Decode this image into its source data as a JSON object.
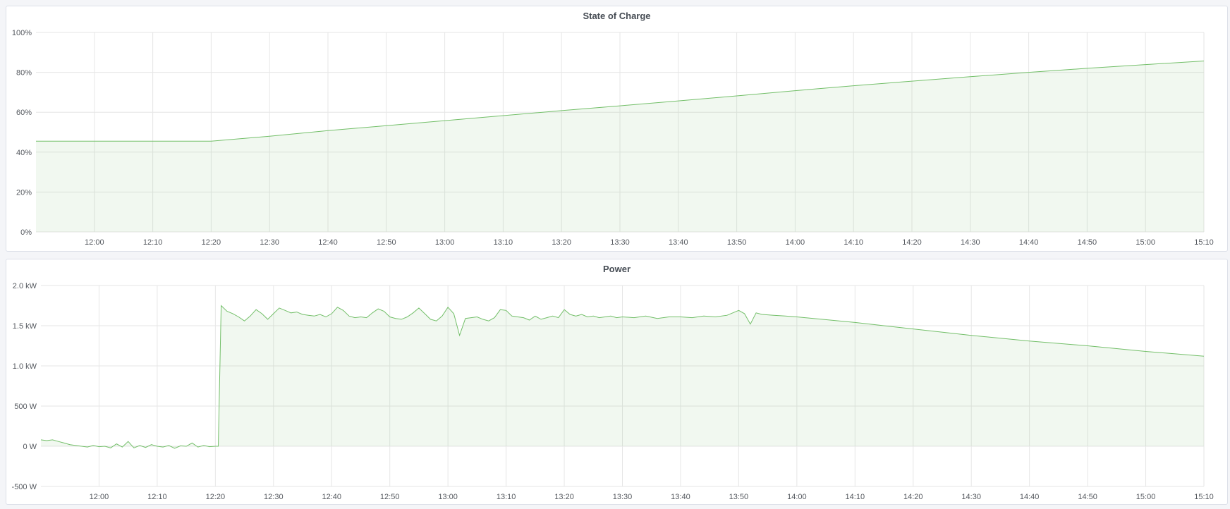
{
  "colors": {
    "line": "#73bf69",
    "fill": "rgba(115,191,105,0.10)",
    "grid": "#e6e6e6",
    "background": "#f4f5f8"
  },
  "chart_data": [
    {
      "type": "area",
      "title": "State of Charge",
      "xlim": [
        "11:50",
        "15:10"
      ],
      "ylim": [
        0,
        100
      ],
      "grid": true,
      "y_ticks": [
        {
          "v": 0,
          "label": "0%"
        },
        {
          "v": 20,
          "label": "20%"
        },
        {
          "v": 40,
          "label": "40%"
        },
        {
          "v": 60,
          "label": "60%"
        },
        {
          "v": 80,
          "label": "80%"
        },
        {
          "v": 100,
          "label": "100%"
        }
      ],
      "x_ticks": [
        "12:00",
        "12:10",
        "12:20",
        "12:30",
        "12:40",
        "12:50",
        "13:00",
        "13:10",
        "13:20",
        "13:30",
        "13:40",
        "13:50",
        "14:00",
        "14:10",
        "14:20",
        "14:30",
        "14:40",
        "14:50",
        "15:00",
        "15:10"
      ],
      "x": [
        "11:50",
        "12:20",
        "12:30",
        "12:40",
        "12:50",
        "13:00",
        "13:10",
        "13:20",
        "13:30",
        "13:40",
        "13:50",
        "14:00",
        "14:10",
        "14:20",
        "14:30",
        "14:40",
        "14:50",
        "15:00",
        "15:10"
      ],
      "values": [
        45.5,
        45.5,
        48,
        50.8,
        53.3,
        55.8,
        58.3,
        60.8,
        63.2,
        65.7,
        68.2,
        70.8,
        73.3,
        75.6,
        77.8,
        80,
        82,
        83.9,
        85.7
      ]
    },
    {
      "type": "area",
      "title": "Power",
      "xlim": [
        "11:50",
        "15:10"
      ],
      "ylim": [
        -500,
        2000
      ],
      "grid": true,
      "y_ticks": [
        {
          "v": -500,
          "label": "-500 W"
        },
        {
          "v": 0,
          "label": "0 W"
        },
        {
          "v": 500,
          "label": "500 W"
        },
        {
          "v": 1000,
          "label": "1.0 kW"
        },
        {
          "v": 1500,
          "label": "1.5 kW"
        },
        {
          "v": 2000,
          "label": "2.0 kW"
        }
      ],
      "x_ticks": [
        "12:00",
        "12:10",
        "12:20",
        "12:30",
        "12:40",
        "12:50",
        "13:00",
        "13:10",
        "13:20",
        "13:30",
        "13:40",
        "13:50",
        "14:00",
        "14:10",
        "14:20",
        "14:30",
        "14:40",
        "14:50",
        "15:00",
        "15:10"
      ],
      "x": [
        "11:50",
        "11:51",
        "11:52",
        "11:53",
        "11:54",
        "11:55",
        "11:56",
        "11:57",
        "11:58",
        "11:59",
        "12:00",
        "12:01",
        "12:02",
        "12:03",
        "12:04",
        "12:05",
        "12:06",
        "12:07",
        "12:08",
        "12:09",
        "12:10",
        "12:11",
        "12:12",
        "12:13",
        "12:14",
        "12:15",
        "12:16",
        "12:17",
        "12:18",
        "12:19",
        "12:20",
        "12:20:30",
        "12:21",
        "12:22",
        "12:23",
        "12:24",
        "12:25",
        "12:26",
        "12:27",
        "12:28",
        "12:29",
        "12:30",
        "12:31",
        "12:32",
        "12:33",
        "12:34",
        "12:35",
        "12:36",
        "12:37",
        "12:38",
        "12:39",
        "12:40",
        "12:41",
        "12:42",
        "12:43",
        "12:44",
        "12:45",
        "12:46",
        "12:47",
        "12:48",
        "12:49",
        "12:50",
        "12:51",
        "12:52",
        "12:53",
        "12:54",
        "12:55",
        "12:56",
        "12:57",
        "12:58",
        "12:59",
        "13:00",
        "13:01",
        "13:02",
        "13:03",
        "13:04",
        "13:05",
        "13:06",
        "13:07",
        "13:08",
        "13:09",
        "13:10",
        "13:11",
        "13:12",
        "13:13",
        "13:14",
        "13:15",
        "13:16",
        "13:17",
        "13:18",
        "13:19",
        "13:20",
        "13:21",
        "13:22",
        "13:23",
        "13:24",
        "13:25",
        "13:26",
        "13:27",
        "13:28",
        "13:29",
        "13:30",
        "13:32",
        "13:34",
        "13:36",
        "13:38",
        "13:40",
        "13:42",
        "13:44",
        "13:46",
        "13:48",
        "13:50",
        "13:51",
        "13:52",
        "13:53",
        "13:54",
        "13:56",
        "13:58",
        "14:00",
        "14:10",
        "14:20",
        "14:30",
        "14:40",
        "14:50",
        "15:00",
        "15:10"
      ],
      "values": [
        80,
        70,
        80,
        60,
        40,
        20,
        10,
        0,
        -10,
        10,
        -5,
        0,
        -20,
        30,
        -10,
        60,
        -20,
        10,
        -15,
        20,
        0,
        -10,
        10,
        -25,
        5,
        0,
        40,
        -10,
        10,
        -5,
        0,
        0,
        1750,
        1680,
        1650,
        1610,
        1560,
        1620,
        1700,
        1650,
        1580,
        1650,
        1720,
        1690,
        1660,
        1670,
        1640,
        1630,
        1620,
        1640,
        1610,
        1650,
        1730,
        1690,
        1620,
        1600,
        1610,
        1600,
        1660,
        1710,
        1680,
        1610,
        1590,
        1580,
        1610,
        1660,
        1720,
        1650,
        1580,
        1560,
        1620,
        1730,
        1650,
        1380,
        1590,
        1600,
        1610,
        1580,
        1560,
        1600,
        1700,
        1690,
        1620,
        1610,
        1600,
        1570,
        1620,
        1580,
        1600,
        1620,
        1600,
        1700,
        1640,
        1620,
        1640,
        1610,
        1620,
        1600,
        1610,
        1620,
        1600,
        1610,
        1600,
        1620,
        1590,
        1610,
        1610,
        1600,
        1620,
        1610,
        1630,
        1690,
        1650,
        1520,
        1660,
        1640,
        1630,
        1620,
        1610,
        1540,
        1460,
        1380,
        1310,
        1250,
        1180,
        1120
      ]
    }
  ]
}
